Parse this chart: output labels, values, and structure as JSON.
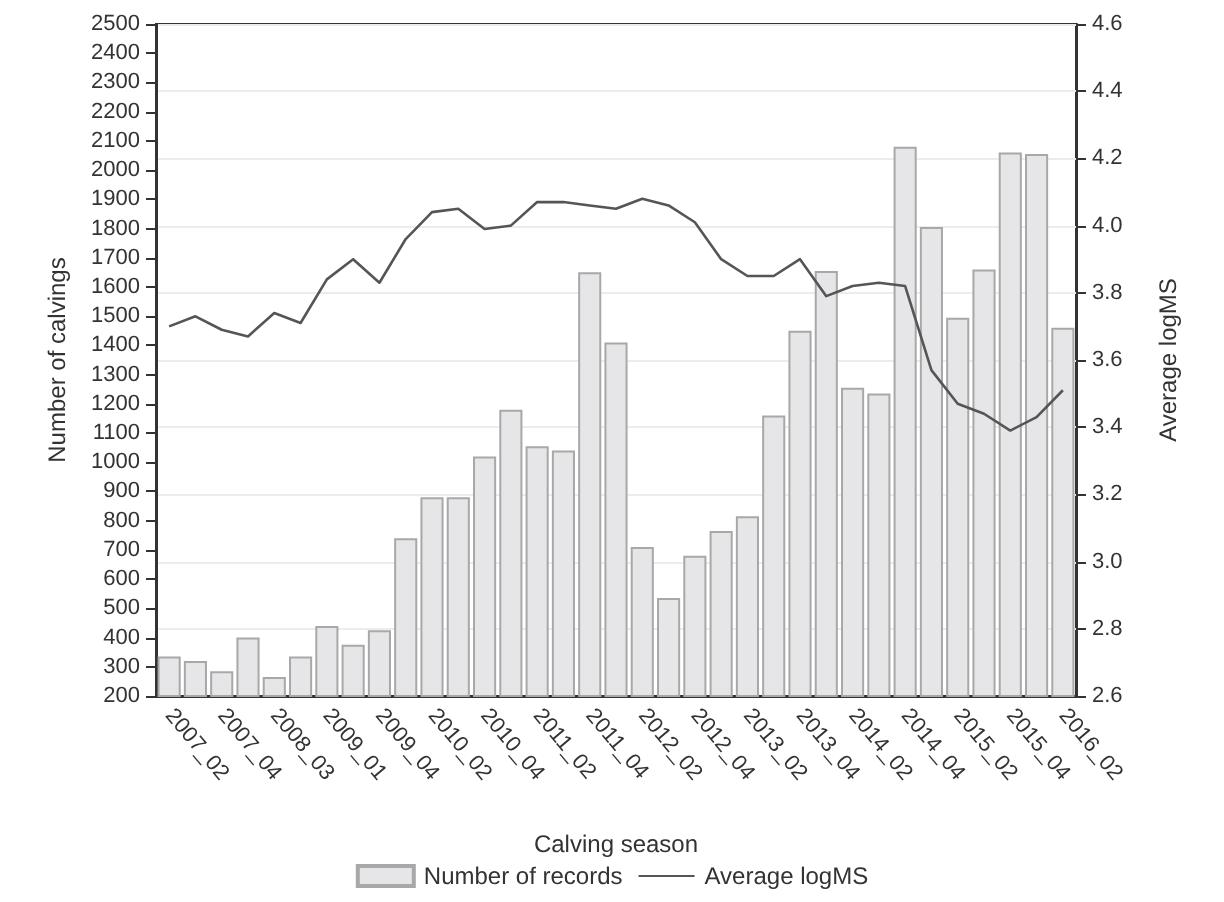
{
  "chart_data": {
    "type": "bar",
    "xlabel": "Calving season",
    "ylabel": "Number of calvings",
    "y2label": "Average logMS",
    "categories": [
      "2007_02",
      null,
      "2007_04",
      null,
      "2008_03",
      null,
      "2009_01",
      null,
      "2009_04",
      null,
      "2010_02",
      null,
      "2010_04",
      null,
      "2011_02",
      null,
      "2011_04",
      null,
      "2012_02",
      null,
      "2012_04",
      null,
      "2013_02",
      null,
      "2013_04",
      null,
      "2014_02",
      null,
      "2014_04",
      null,
      "2015_02",
      null,
      "2015_04",
      null,
      "2016_02"
    ],
    "series": [
      {
        "name": "Number of records",
        "color": "#e6e6e8",
        "values": [
          335,
          320,
          285,
          400,
          265,
          335,
          440,
          375,
          425,
          740,
          880,
          880,
          1020,
          1180,
          1055,
          1040,
          1650,
          1410,
          710,
          535,
          680,
          765,
          815,
          1160,
          1450,
          1655,
          1255,
          1235,
          2080,
          1805,
          1495,
          1660,
          2060,
          2055,
          1460
        ]
      },
      {
        "name": "Average logMS",
        "type": "line",
        "axis": "y2",
        "color": "#555555",
        "values": [
          3.7,
          3.73,
          3.69,
          3.67,
          3.74,
          3.71,
          3.84,
          3.9,
          3.83,
          3.96,
          4.04,
          4.05,
          3.99,
          4.0,
          4.07,
          4.07,
          4.06,
          4.05,
          4.08,
          4.06,
          4.01,
          3.9,
          3.85,
          3.85,
          3.9,
          3.79,
          3.82,
          3.83,
          3.82,
          3.57,
          3.47,
          3.44,
          3.39,
          3.43,
          3.51
        ]
      }
    ],
    "ylim": [
      200,
      2500
    ],
    "yticks": [
      200,
      300,
      400,
      500,
      600,
      700,
      800,
      900,
      1000,
      1100,
      1200,
      1300,
      1400,
      1500,
      1600,
      1700,
      1800,
      1900,
      2000,
      2100,
      2200,
      2300,
      2400,
      2500
    ],
    "y2lim": [
      2.6,
      4.6
    ],
    "y2ticks": [
      {
        "value": 2.6,
        "label": "2.6"
      },
      {
        "value": 2.8,
        "label": "2.8"
      },
      {
        "value": 3.0,
        "label": "3.0"
      },
      {
        "value": 3.2,
        "label": "3.2"
      },
      {
        "value": 3.4,
        "label": "3.4"
      },
      {
        "value": 3.6,
        "label": "3.6"
      },
      {
        "value": 3.8,
        "label": "3.8"
      },
      {
        "value": 4.0,
        "label": "4.0"
      },
      {
        "value": 4.2,
        "label": "4.2"
      },
      {
        "value": 4.4,
        "label": "4.4"
      },
      {
        "value": 4.6,
        "label": "4.6"
      }
    ],
    "grid": true,
    "legend": "bottom",
    "marker": "none",
    "line_style": "solid"
  }
}
